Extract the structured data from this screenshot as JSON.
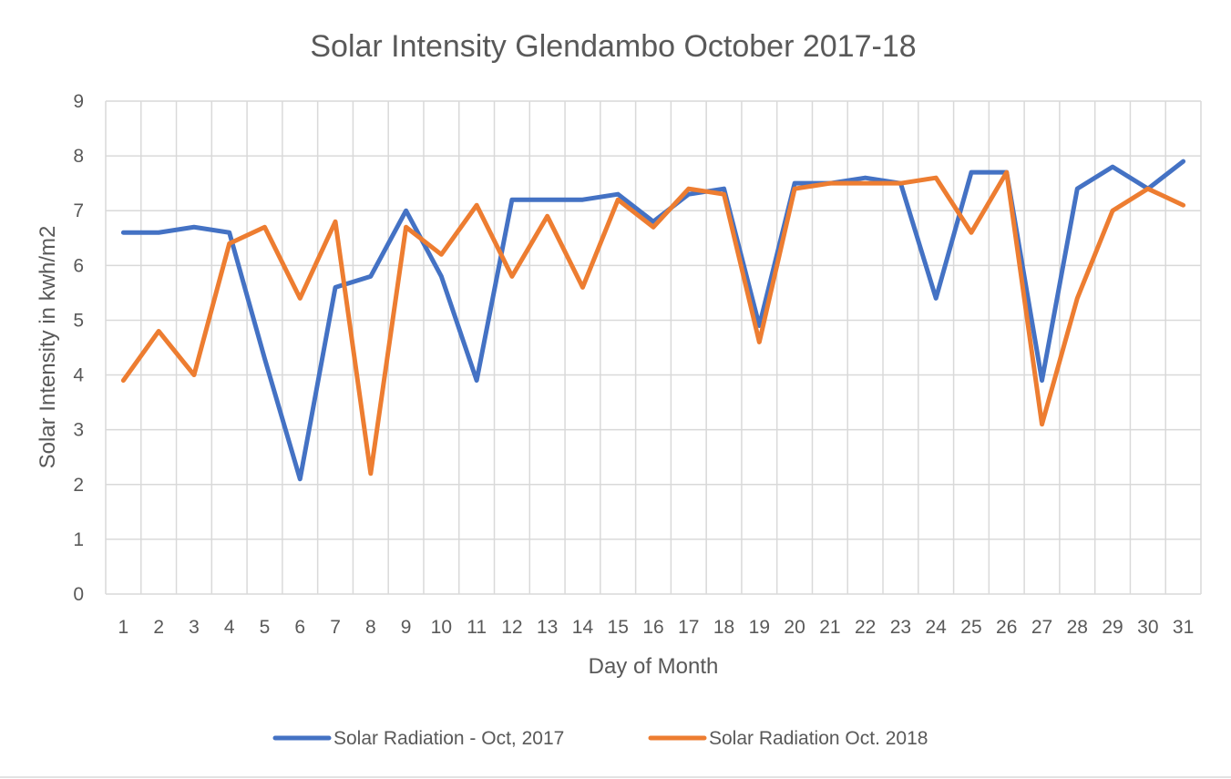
{
  "chart_data": {
    "type": "line",
    "title": "Solar Intensity Glendambo October 2017-18",
    "xlabel": "Day of Month",
    "ylabel": "Solar Intensity in kwh/m2",
    "ylim": [
      0,
      9
    ],
    "yticks": [
      0,
      1,
      2,
      3,
      4,
      5,
      6,
      7,
      8,
      9
    ],
    "grid": true,
    "legend_position": "bottom",
    "categories": [
      "1",
      "2",
      "3",
      "4",
      "5",
      "6",
      "7",
      "8",
      "9",
      "10",
      "11",
      "12",
      "13",
      "14",
      "15",
      "16",
      "17",
      "18",
      "19",
      "20",
      "21",
      "22",
      "23",
      "24",
      "25",
      "26",
      "27",
      "28",
      "29",
      "30",
      "31"
    ],
    "series": [
      {
        "name": "Solar Radiation - Oct, 2017",
        "color": "#4472c4",
        "values": [
          6.6,
          6.6,
          6.7,
          6.6,
          4.3,
          2.1,
          5.6,
          5.8,
          7.0,
          5.8,
          3.9,
          7.2,
          7.2,
          7.2,
          7.3,
          6.8,
          7.3,
          7.4,
          4.9,
          7.5,
          7.5,
          7.6,
          7.5,
          5.4,
          7.7,
          7.7,
          3.9,
          7.4,
          7.8,
          7.4,
          7.9
        ]
      },
      {
        "name": "Solar Radiation Oct. 2018",
        "color": "#ed7d31",
        "values": [
          3.9,
          4.8,
          4.0,
          6.4,
          6.7,
          5.4,
          6.8,
          2.2,
          6.7,
          6.2,
          7.1,
          5.8,
          6.9,
          5.6,
          7.2,
          6.7,
          7.4,
          7.3,
          4.6,
          7.4,
          7.5,
          7.5,
          7.5,
          7.6,
          6.6,
          7.7,
          3.1,
          5.4,
          7.0,
          7.4,
          7.1
        ]
      }
    ]
  }
}
